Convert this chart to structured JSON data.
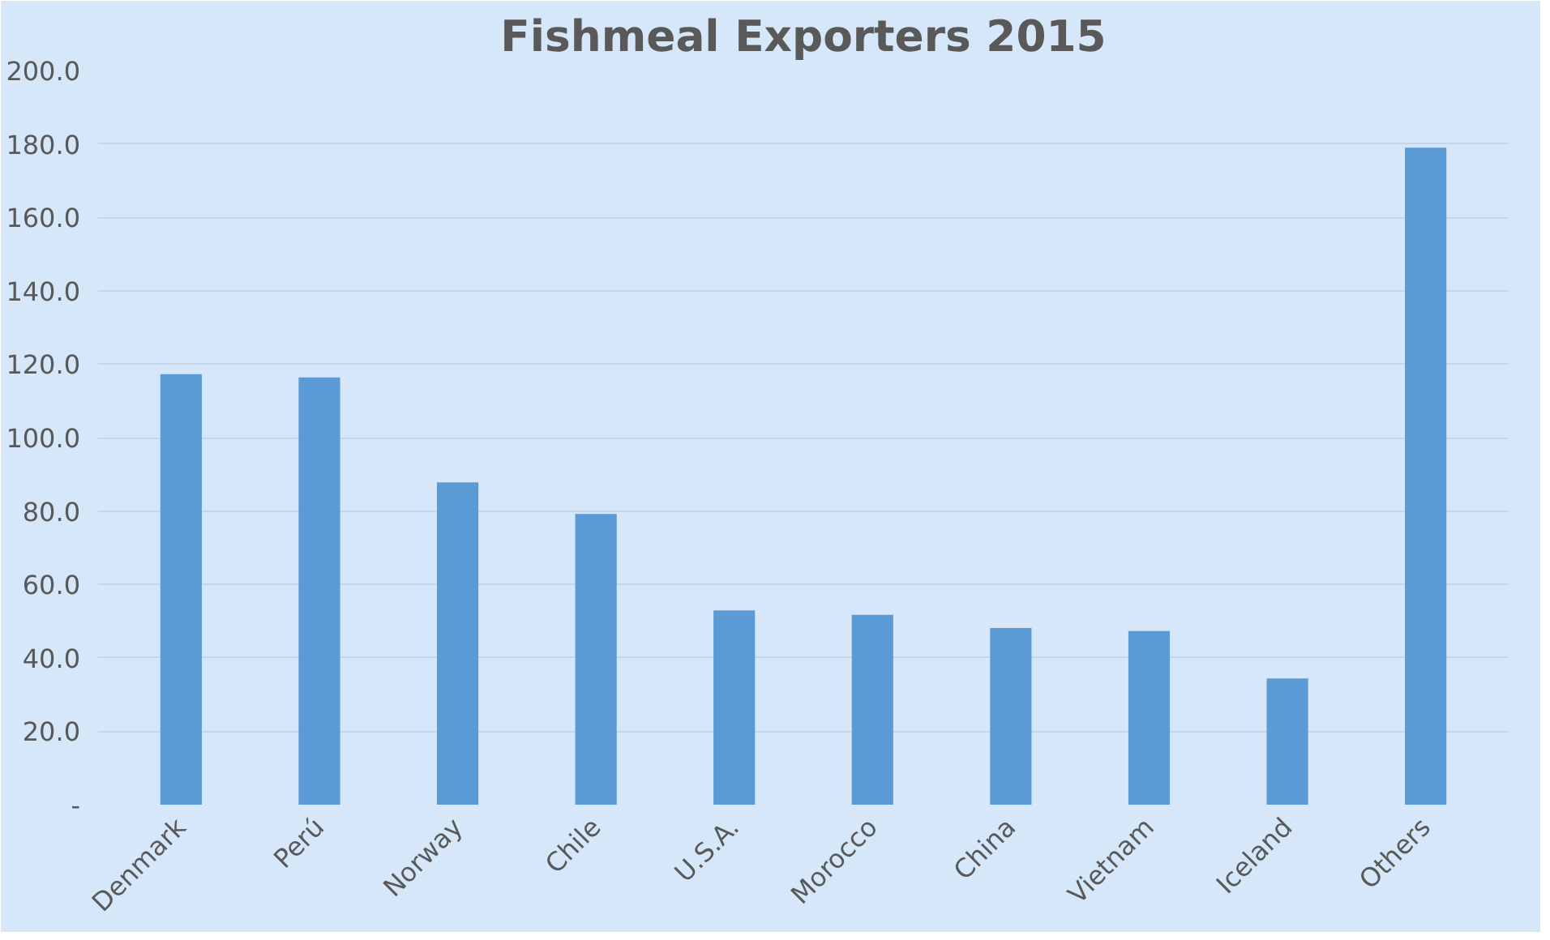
{
  "chart_data": {
    "type": "bar",
    "title": "Fishmeal Exporters 2015",
    "categories": [
      "Denmark",
      "Perú",
      "Norway",
      "Chile",
      "U.S.A.",
      "Morocco",
      "China",
      "Vietnam",
      "Iceland",
      "Others"
    ],
    "values": [
      117.3,
      116.4,
      87.8,
      79.2,
      52.9,
      51.7,
      48.1,
      47.3,
      34.4,
      179.0
    ],
    "color": "#5b9bd5",
    "ylim": [
      0,
      200
    ],
    "yticks": [
      {
        "value": 0,
        "label": "-"
      },
      {
        "value": 20,
        "label": "20.0"
      },
      {
        "value": 40,
        "label": "40.0"
      },
      {
        "value": 60,
        "label": "60.0"
      },
      {
        "value": 80,
        "label": "80.0"
      },
      {
        "value": 100,
        "label": "100.0"
      },
      {
        "value": 120,
        "label": "120.0"
      },
      {
        "value": 140,
        "label": "140.0"
      },
      {
        "value": 160,
        "label": "160.0"
      },
      {
        "value": 180,
        "label": "180.0"
      },
      {
        "value": 200,
        "label": "200.0"
      }
    ],
    "grid": "y"
  }
}
